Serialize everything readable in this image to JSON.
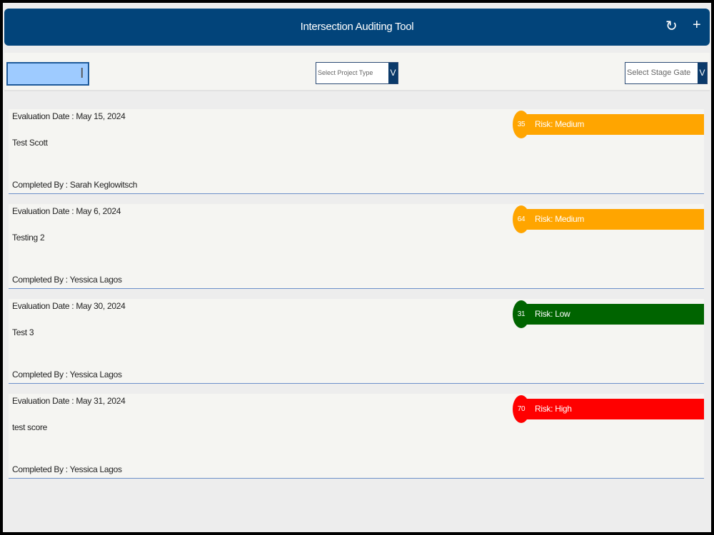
{
  "header": {
    "title": "Intersection Auditing Tool",
    "refresh_icon": "refresh-icon",
    "add_icon": "plus-icon"
  },
  "filters": {
    "search_value": "",
    "project_type_placeholder": "Select Project Type",
    "stage_gate_placeholder": "Select Stage Gate",
    "chevron": "V"
  },
  "colors": {
    "header": "#02447a",
    "medium": "#ffa500",
    "low": "#006400",
    "high": "#ff0000"
  },
  "items": [
    {
      "date": "Evaluation Date : May 15, 2024",
      "name": "Test Scott",
      "completed_by": "Completed By : Sarah Keglowitsch",
      "score": "35",
      "risk": "Risk: Medium",
      "color": "#ffa500"
    },
    {
      "date": "Evaluation Date : May 6, 2024",
      "name": "Testing 2",
      "completed_by": "Completed By : Yessica Lagos",
      "score": "64",
      "risk": "Risk: Medium",
      "color": "#ffa500"
    },
    {
      "date": "Evaluation Date : May 30, 2024",
      "name": "Test 3",
      "completed_by": "Completed By : Yessica Lagos",
      "score": "31",
      "risk": "Risk: Low",
      "color": "#006400"
    },
    {
      "date": "Evaluation Date : May 31, 2024",
      "name": "test score",
      "completed_by": "Completed By : Yessica Lagos",
      "score": "70",
      "risk": "Risk: High",
      "color": "#ff0000"
    }
  ]
}
